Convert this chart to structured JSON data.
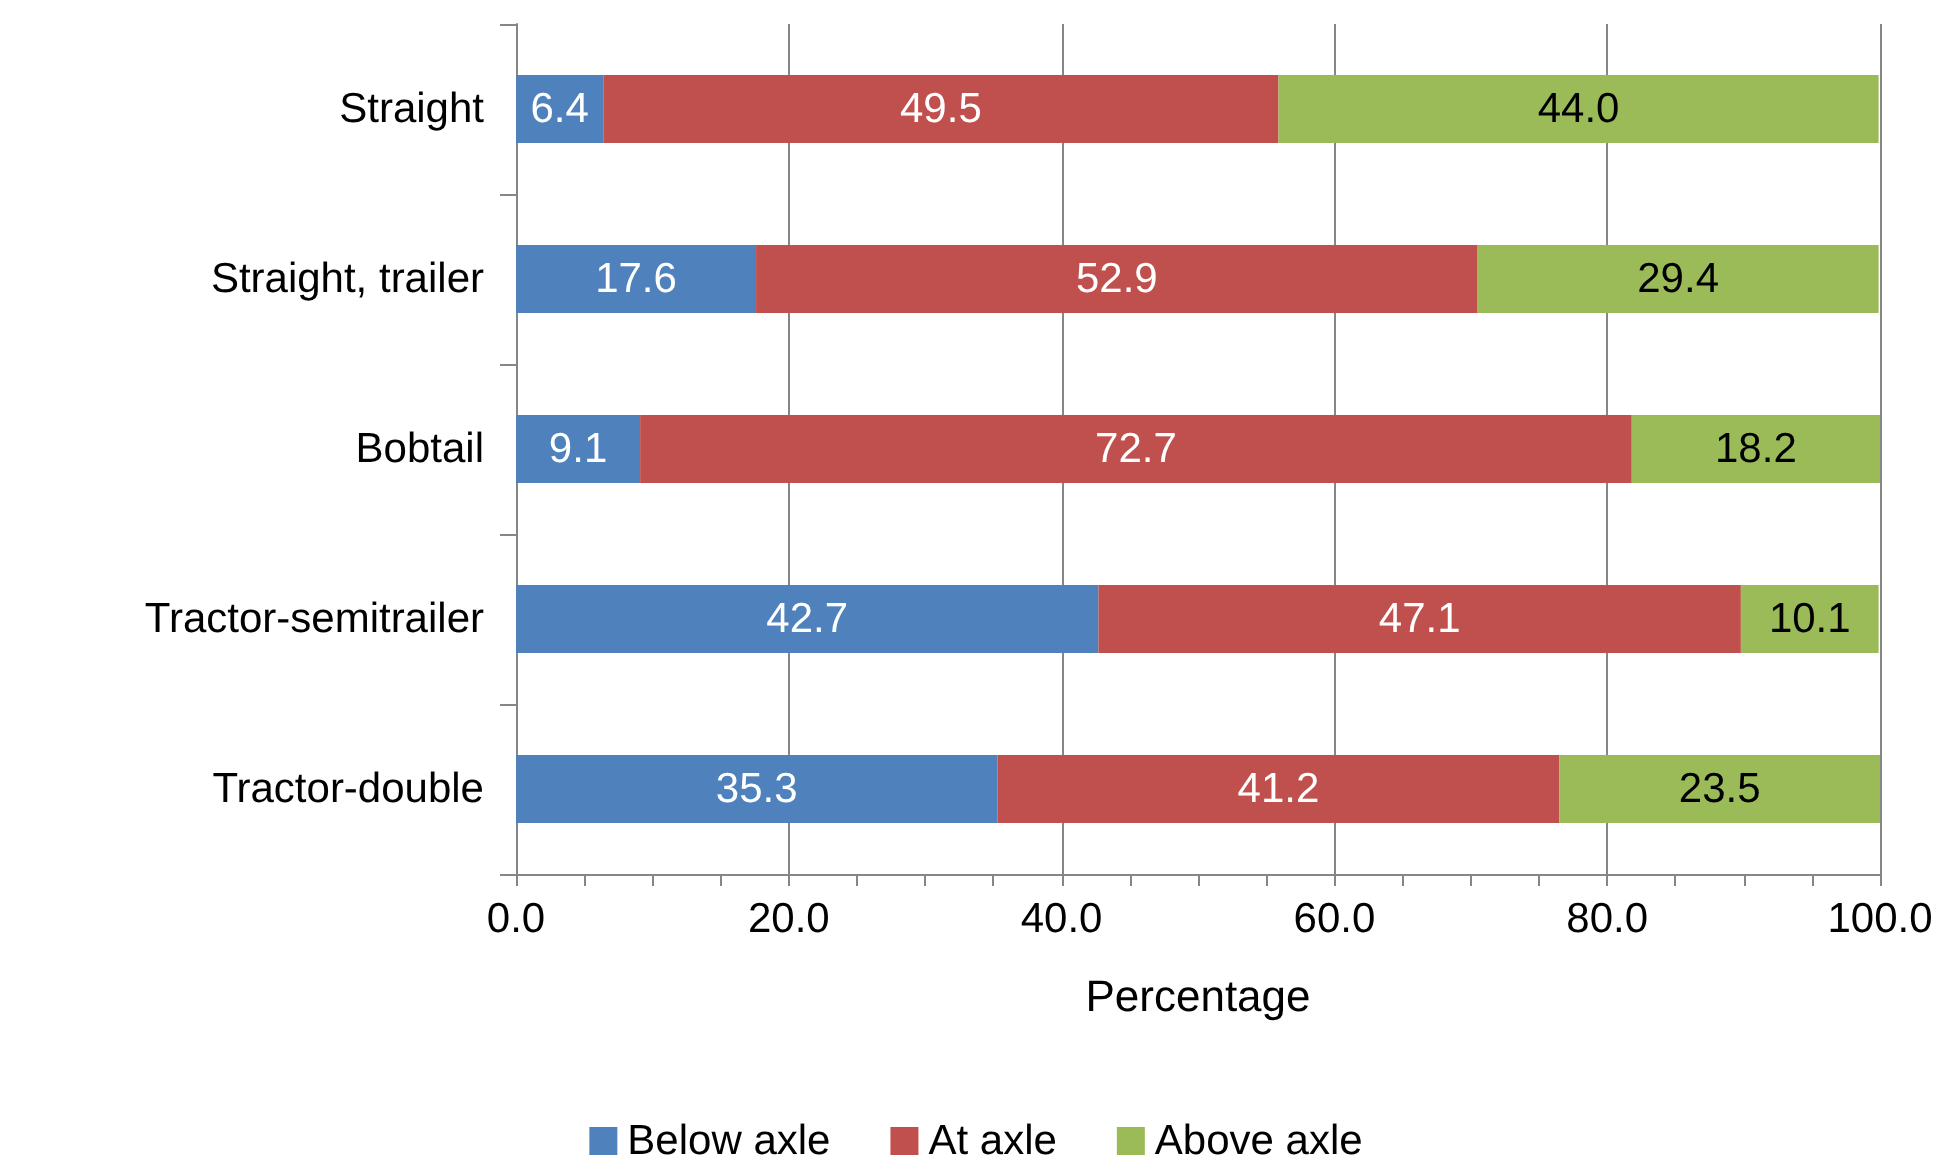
{
  "chart_data": {
    "type": "bar",
    "orientation": "horizontal",
    "stacked": true,
    "xlabel": "Percentage",
    "categories": [
      "Straight",
      "Straight, trailer",
      "Bobtail",
      "Tractor-semitrailer",
      "Tractor-double"
    ],
    "series": [
      {
        "name": "Below axle",
        "color": "#4f81bd",
        "values": [
          6.4,
          17.6,
          9.1,
          42.7,
          35.3
        ],
        "value_labels": [
          "6.4",
          "17.6",
          "9.1",
          "42.7",
          "35.3"
        ]
      },
      {
        "name": "At axle",
        "color": "#c0504d",
        "values": [
          49.5,
          52.9,
          72.7,
          47.1,
          41.2
        ],
        "value_labels": [
          "49.5",
          "52.9",
          "72.7",
          "47.1",
          "41.2"
        ]
      },
      {
        "name": "Above axle",
        "color": "#9bbb59",
        "values": [
          44.0,
          29.4,
          18.2,
          10.1,
          23.5
        ],
        "value_labels": [
          "44.0",
          "29.4",
          "18.2",
          "10.1",
          "23.5"
        ]
      }
    ],
    "xlim": [
      0,
      100
    ],
    "xticks": [
      {
        "value": 0,
        "label": "0.0"
      },
      {
        "value": 5,
        "label": null
      },
      {
        "value": 10,
        "label": null
      },
      {
        "value": 15,
        "label": null
      },
      {
        "value": 20,
        "label": "20.0"
      },
      {
        "value": 25,
        "label": null
      },
      {
        "value": 30,
        "label": null
      },
      {
        "value": 35,
        "label": null
      },
      {
        "value": 40,
        "label": "40.0"
      },
      {
        "value": 45,
        "label": null
      },
      {
        "value": 50,
        "label": null
      },
      {
        "value": 55,
        "label": null
      },
      {
        "value": 60,
        "label": "60.0"
      },
      {
        "value": 65,
        "label": null
      },
      {
        "value": 70,
        "label": null
      },
      {
        "value": 75,
        "label": null
      },
      {
        "value": 80,
        "label": "80.0"
      },
      {
        "value": 85,
        "label": null
      },
      {
        "value": 90,
        "label": null
      },
      {
        "value": 95,
        "label": null
      },
      {
        "value": 100,
        "label": "100.0"
      }
    ],
    "grid": "x",
    "legend": "bottom"
  }
}
